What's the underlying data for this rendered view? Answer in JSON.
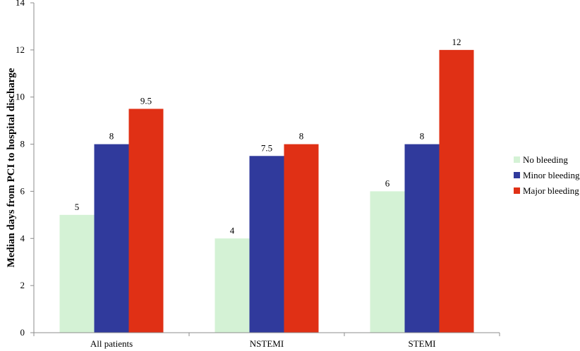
{
  "chart_data": {
    "type": "bar",
    "categories": [
      "All patients",
      "NSTEMI",
      "STEMI"
    ],
    "series": [
      {
        "name": "No bleeding",
        "values": [
          5,
          4,
          6
        ],
        "color": "#d4f2d5"
      },
      {
        "name": "Minor bleeding",
        "values": [
          8,
          7.5,
          8
        ],
        "color": "#303a9c"
      },
      {
        "name": "Major bleeding",
        "values": [
          9.5,
          8,
          12
        ],
        "color": "#e03015"
      }
    ],
    "ylabel": "Median days from PCI to hospital discharge",
    "ylim": [
      0,
      14
    ],
    "yticks": [
      0,
      2,
      4,
      6,
      8,
      10,
      12,
      14
    ],
    "grid": false,
    "legend_position": "right"
  }
}
